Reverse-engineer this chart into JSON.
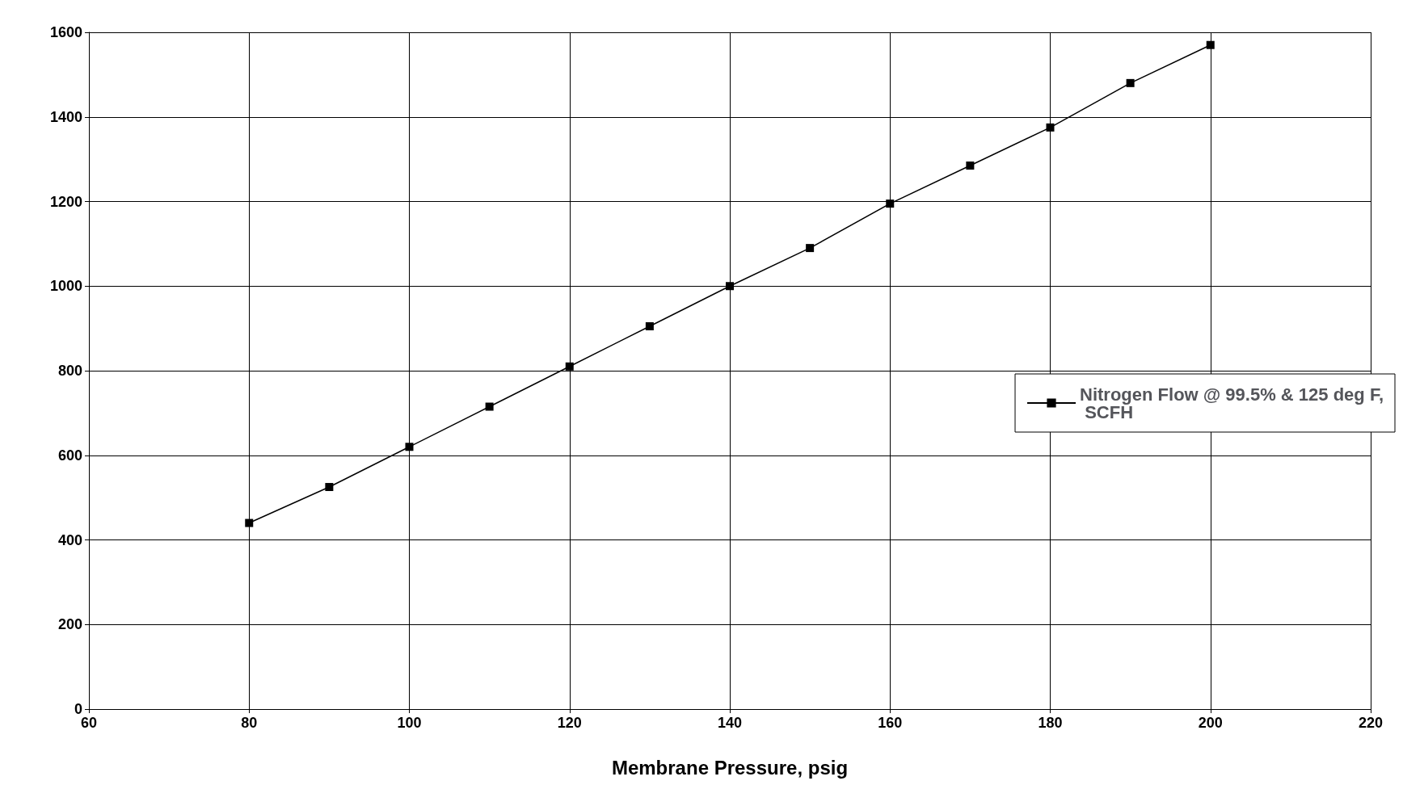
{
  "chart_data": {
    "type": "line",
    "xlabel": "Membrane Pressure, psig",
    "x": [
      80,
      90,
      100,
      110,
      120,
      130,
      140,
      150,
      160,
      170,
      180,
      190,
      200
    ],
    "series": [
      {
        "name": "Nitrogen Flow @ 99.5% & 125 deg F, SCFH",
        "color": "#000000",
        "values": [
          440,
          525,
          620,
          715,
          810,
          905,
          1000,
          1090,
          1195,
          1285,
          1375,
          1480,
          1570
        ]
      }
    ],
    "xlim": [
      60,
      220
    ],
    "xticks": [
      60,
      80,
      100,
      120,
      140,
      160,
      180,
      200,
      220
    ],
    "ylim": [
      0,
      1600
    ],
    "yticks": [
      0,
      200,
      400,
      600,
      800,
      1000,
      1200,
      1400,
      1600
    ],
    "grid": true,
    "legend": "right",
    "marker": "square",
    "line_style": "solid"
  }
}
